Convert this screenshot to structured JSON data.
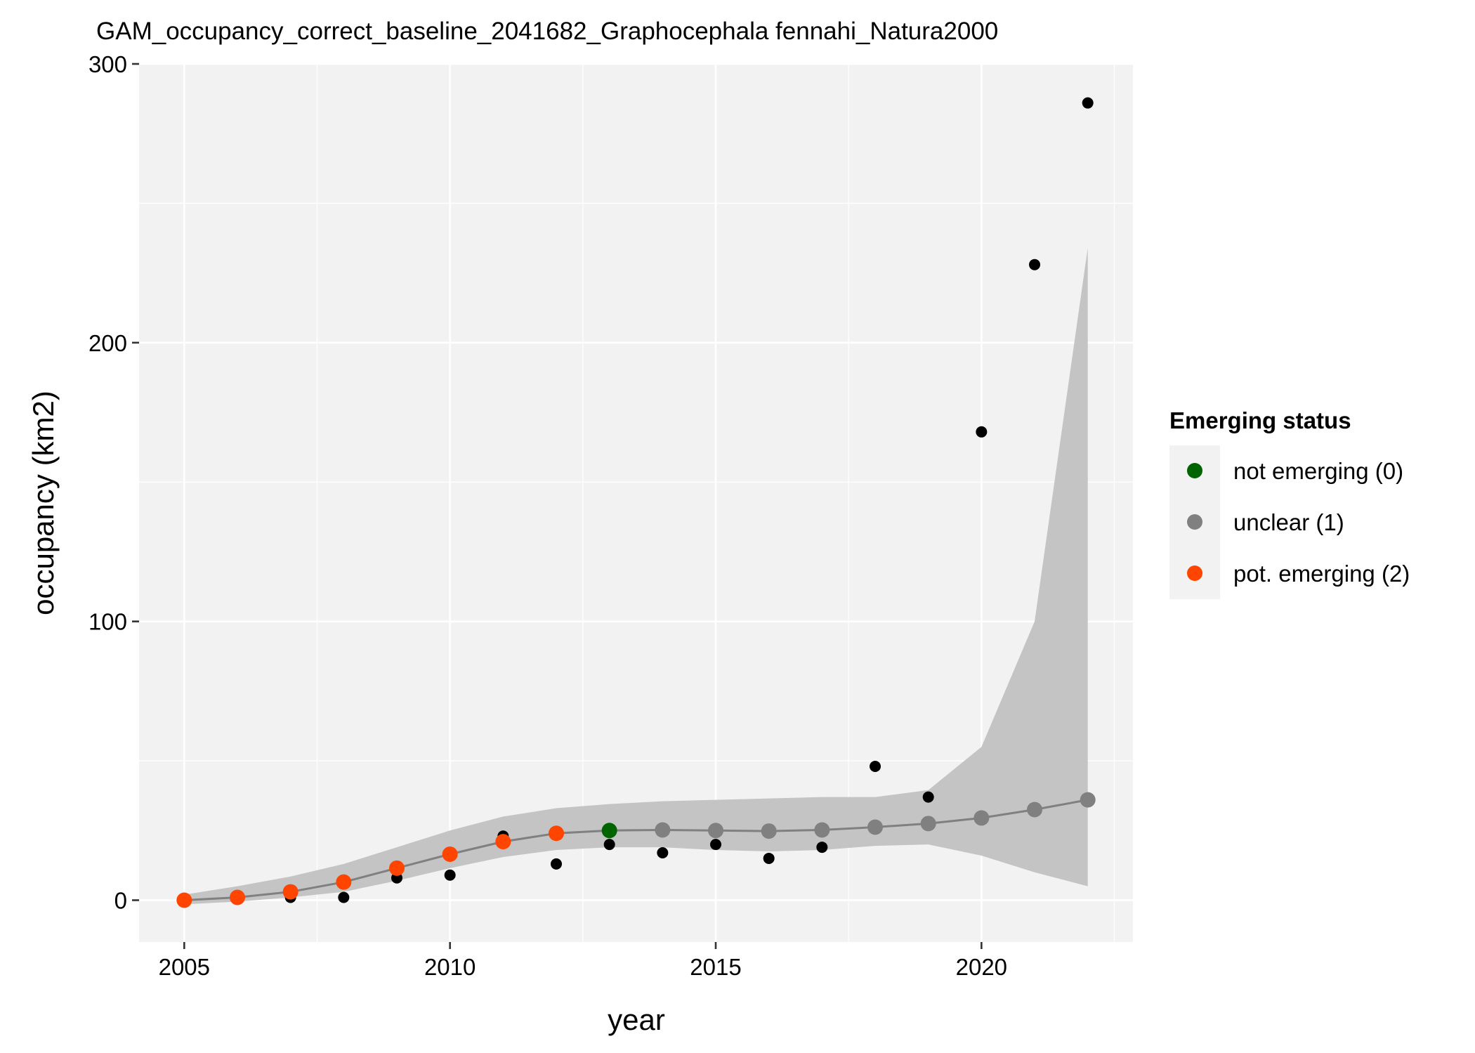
{
  "chart_data": {
    "type": "line",
    "title": "GAM_occupancy_correct_baseline_2041682_Graphocephala fennahi_Natura2000",
    "xlabel": "year",
    "ylabel": "occupancy (km2)",
    "xlim": [
      2004.15,
      2022.85
    ],
    "ylim": [
      -15,
      300
    ],
    "x_ticks": [
      2005,
      2010,
      2015,
      2020
    ],
    "x_tick_labels": [
      "2005",
      "2010",
      "2015",
      "2020"
    ],
    "y_ticks": [
      0,
      100,
      200,
      300
    ],
    "y_tick_labels": [
      "0",
      "100",
      "200",
      "300"
    ],
    "grid": true,
    "observed": {
      "x": [
        2005,
        2006,
        2007,
        2008,
        2009,
        2010,
        2011,
        2012,
        2013,
        2014,
        2015,
        2016,
        2017,
        2018,
        2019,
        2020,
        2021,
        2022
      ],
      "y": [
        0,
        1,
        1,
        1,
        8,
        9,
        23,
        13,
        20,
        17,
        20,
        15,
        19,
        48,
        37,
        168,
        228,
        286
      ]
    },
    "fit": {
      "x": [
        2005,
        2006,
        2007,
        2008,
        2009,
        2010,
        2011,
        2012,
        2013,
        2014,
        2015,
        2016,
        2017,
        2018,
        2019,
        2020,
        2021,
        2022
      ],
      "y": [
        0,
        1,
        3,
        6.5,
        11.5,
        16.5,
        21,
        24,
        25,
        25.2,
        25,
        24.8,
        25.2,
        26.2,
        27.5,
        29.5,
        32.5,
        36
      ],
      "lower": [
        -1.5,
        -0.5,
        1,
        3,
        7,
        11.5,
        15.5,
        18,
        19,
        19,
        18,
        17.5,
        18,
        19.5,
        20,
        16,
        10,
        5
      ],
      "upper": [
        2,
        5,
        8.5,
        13,
        19,
        25,
        30,
        33,
        34.5,
        35.5,
        36,
        36.5,
        37,
        37,
        39.5,
        55,
        100,
        234
      ],
      "status": [
        2,
        2,
        2,
        2,
        2,
        2,
        2,
        2,
        0,
        1,
        1,
        1,
        1,
        1,
        1,
        1,
        1,
        1
      ]
    },
    "legend": {
      "title": "Emerging status",
      "position": "right",
      "entries": [
        {
          "label": "not emerging (0)",
          "status": 0,
          "color": "#006400"
        },
        {
          "label": "unclear (1)",
          "status": 1,
          "color": "#808080"
        },
        {
          "label": "pot. emerging (2)",
          "status": 2,
          "color": "#FF4500"
        }
      ]
    },
    "colors": {
      "panel_background": "#F2F2F2",
      "grid": "#FFFFFF",
      "ribbon": "#C4C4C4",
      "fit_line": "#808080",
      "observed_points": "#000000"
    }
  }
}
